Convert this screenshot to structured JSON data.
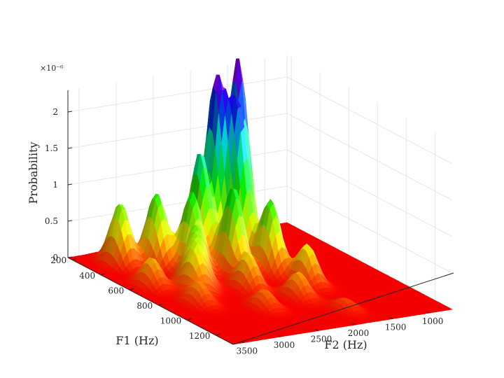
{
  "chart_data": {
    "type": "surface",
    "xlabel": "F1 (Hz)",
    "ylabel": "F2 (Hz)",
    "zlabel": "Probability",
    "z_exponent_label": "×10⁻⁶",
    "x_ticks": [
      "200",
      "400",
      "600",
      "800",
      "1000",
      "1200"
    ],
    "y_ticks": [
      "1000",
      "1500",
      "2000",
      "2500",
      "3000",
      "3500"
    ],
    "z_ticks": [
      "0",
      "0.5",
      "1",
      "1.5",
      "2"
    ],
    "xlim": [
      170,
      1320
    ],
    "ylim": [
      700,
      3650
    ],
    "zlim": [
      0,
      2.3
    ],
    "z_scale": "1e-6",
    "grid": true,
    "colormap": "hsv (red low → yellow → green → blue → magenta high)",
    "peaks": [
      {
        "f1": 320,
        "f2": 1650,
        "p": 2.6
      },
      {
        "f1": 370,
        "f2": 2050,
        "p": 2.3
      },
      {
        "f1": 460,
        "f2": 1900,
        "p": 2.0
      },
      {
        "f1": 420,
        "f2": 2350,
        "p": 1.5
      },
      {
        "f1": 600,
        "f2": 2250,
        "p": 1.2
      },
      {
        "f1": 520,
        "f2": 2650,
        "p": 1.1
      },
      {
        "f1": 650,
        "f2": 1850,
        "p": 1.0
      },
      {
        "f1": 400,
        "f2": 2900,
        "p": 1.0
      },
      {
        "f1": 330,
        "f2": 3250,
        "p": 0.85
      },
      {
        "f1": 650,
        "f2": 2850,
        "p": 0.75
      },
      {
        "f1": 830,
        "f2": 1700,
        "p": 0.55
      },
      {
        "f1": 780,
        "f2": 2400,
        "p": 0.5
      },
      {
        "f1": 720,
        "f2": 3000,
        "p": 0.55
      },
      {
        "f1": 600,
        "f2": 3350,
        "p": 0.4
      },
      {
        "f1": 950,
        "f2": 2050,
        "p": 0.35
      },
      {
        "f1": 1000,
        "f2": 2600,
        "p": 0.25
      },
      {
        "f1": 850,
        "f2": 3200,
        "p": 0.3
      },
      {
        "f1": 1150,
        "f2": 1800,
        "p": 0.15
      }
    ]
  }
}
